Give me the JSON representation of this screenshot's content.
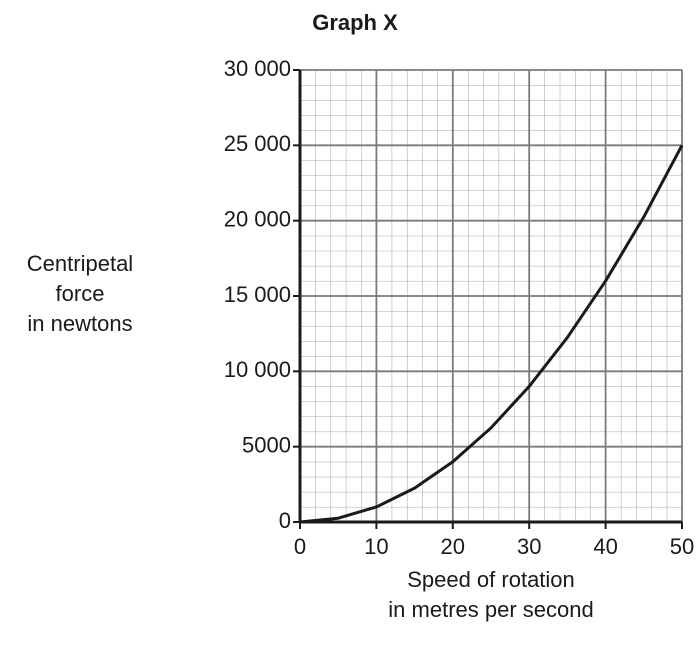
{
  "chart_data": {
    "type": "line",
    "title": "Graph X",
    "x_label": [
      "Speed of rotation",
      "in metres per second"
    ],
    "y_label": [
      "Centripetal",
      "force",
      "in newtons"
    ],
    "x": [
      0,
      5,
      10,
      15,
      20,
      25,
      30,
      35,
      40,
      45,
      50
    ],
    "series": [
      {
        "name": "Centripetal force",
        "color": "#1a1a1a",
        "values": [
          0,
          250,
          1000,
          2250,
          4000,
          6250,
          9000,
          12250,
          16000,
          20250,
          25000
        ]
      }
    ],
    "xlim": [
      0,
      50
    ],
    "xticks": [
      0,
      10,
      20,
      30,
      40,
      50
    ],
    "ylim": [
      0,
      30000
    ],
    "yticks": [
      0,
      5000,
      {
        "value": 10000,
        "label": "10 000"
      },
      {
        "value": 15000,
        "label": "15 000"
      },
      {
        "value": 20000,
        "label": "20 000"
      },
      {
        "value": 25000,
        "label": "25 000"
      },
      {
        "value": 30000,
        "label": "30 000"
      }
    ],
    "grid": true
  }
}
